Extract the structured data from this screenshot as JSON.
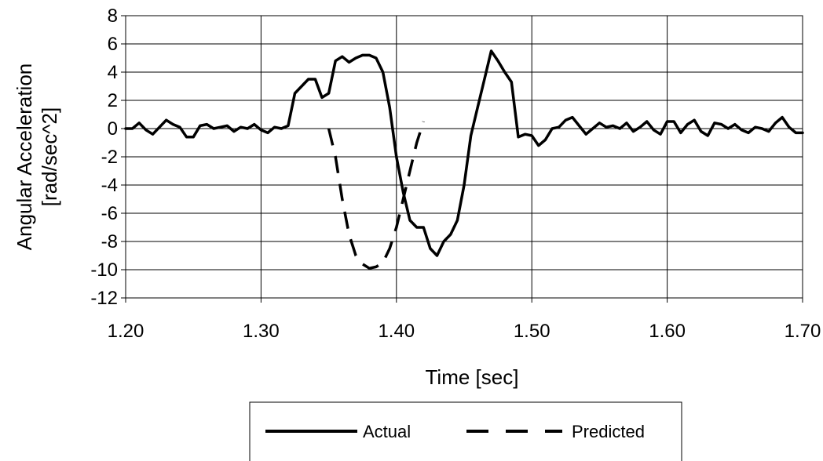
{
  "chart_data": {
    "type": "line",
    "xlabel": "Time [sec]",
    "ylabel_line1": "Angular Acceleration",
    "ylabel_line2": "[rad/sec^2]",
    "xlim": [
      1.2,
      1.7
    ],
    "ylim": [
      -12,
      8
    ],
    "x_ticks": [
      1.2,
      1.3,
      1.4,
      1.5,
      1.6,
      1.7
    ],
    "x_tick_labels": [
      "1.20",
      "1.30",
      "1.40",
      "1.50",
      "1.60",
      "1.70"
    ],
    "y_ticks": [
      8,
      6,
      4,
      2,
      0,
      -2,
      -4,
      -6,
      -8,
      -10,
      -12
    ],
    "y_tick_labels": [
      "8",
      "6",
      "4",
      "2",
      "0",
      "-2",
      "-4",
      "-6",
      "-8",
      "-10",
      "-12"
    ],
    "grid": true,
    "legend_position": "bottom-center",
    "colors": {
      "series": "#000000",
      "grid": "#000000",
      "background": "#ffffff"
    },
    "series": [
      {
        "name": "Actual",
        "style": "solid",
        "x": [
          1.2,
          1.205,
          1.21,
          1.215,
          1.22,
          1.225,
          1.23,
          1.235,
          1.24,
          1.245,
          1.25,
          1.255,
          1.26,
          1.265,
          1.27,
          1.275,
          1.28,
          1.285,
          1.29,
          1.295,
          1.3,
          1.305,
          1.31,
          1.315,
          1.32,
          1.325,
          1.33,
          1.335,
          1.34,
          1.345,
          1.35,
          1.355,
          1.36,
          1.365,
          1.37,
          1.375,
          1.38,
          1.385,
          1.39,
          1.395,
          1.4,
          1.405,
          1.41,
          1.415,
          1.42,
          1.425,
          1.43,
          1.435,
          1.44,
          1.445,
          1.45,
          1.455,
          1.46,
          1.465,
          1.47,
          1.475,
          1.48,
          1.485,
          1.49,
          1.495,
          1.5,
          1.505,
          1.51,
          1.515,
          1.52,
          1.525,
          1.53,
          1.535,
          1.54,
          1.545,
          1.55,
          1.555,
          1.56,
          1.565,
          1.57,
          1.575,
          1.58,
          1.585,
          1.59,
          1.595,
          1.6,
          1.605,
          1.61,
          1.615,
          1.62,
          1.625,
          1.63,
          1.635,
          1.64,
          1.645,
          1.65,
          1.655,
          1.66,
          1.665,
          1.67,
          1.675,
          1.68,
          1.685,
          1.69,
          1.695,
          1.7
        ],
        "y": [
          0.0,
          0.0,
          0.4,
          -0.1,
          -0.4,
          0.1,
          0.6,
          0.3,
          0.1,
          -0.6,
          -0.6,
          0.2,
          0.3,
          0.0,
          0.1,
          0.2,
          -0.2,
          0.1,
          0.0,
          0.3,
          -0.1,
          -0.3,
          0.1,
          0.0,
          0.2,
          2.5,
          3.0,
          3.5,
          3.5,
          2.2,
          2.5,
          4.8,
          5.1,
          4.7,
          5.0,
          5.2,
          5.2,
          5.0,
          4.0,
          1.5,
          -2.0,
          -4.5,
          -6.5,
          -7.0,
          -7.0,
          -8.5,
          -9.0,
          -8.0,
          -7.5,
          -6.5,
          -4.0,
          -0.5,
          1.5,
          3.5,
          5.5,
          4.8,
          4.0,
          3.3,
          -0.6,
          -0.4,
          -0.5,
          -1.2,
          -0.8,
          0.0,
          0.1,
          0.6,
          0.8,
          0.2,
          -0.4,
          0.0,
          0.4,
          0.1,
          0.2,
          0.0,
          0.4,
          -0.2,
          0.1,
          0.5,
          -0.1,
          -0.4,
          0.5,
          0.5,
          -0.3,
          0.3,
          0.6,
          -0.2,
          -0.5,
          0.4,
          0.3,
          0.0,
          0.3,
          -0.1,
          -0.3,
          0.1,
          0.0,
          -0.2,
          0.4,
          0.8,
          0.1,
          -0.3,
          -0.3
        ]
      },
      {
        "name": "Predicted",
        "style": "dashed",
        "x": [
          1.35,
          1.355,
          1.36,
          1.365,
          1.37,
          1.375,
          1.38,
          1.385,
          1.39,
          1.395,
          1.4,
          1.405,
          1.41,
          1.415,
          1.42
        ],
        "y": [
          0.0,
          -2.0,
          -5.0,
          -7.5,
          -9.0,
          -9.6,
          -9.9,
          -9.8,
          -9.5,
          -8.5,
          -7.0,
          -5.0,
          -3.0,
          -1.0,
          0.5
        ]
      }
    ]
  }
}
